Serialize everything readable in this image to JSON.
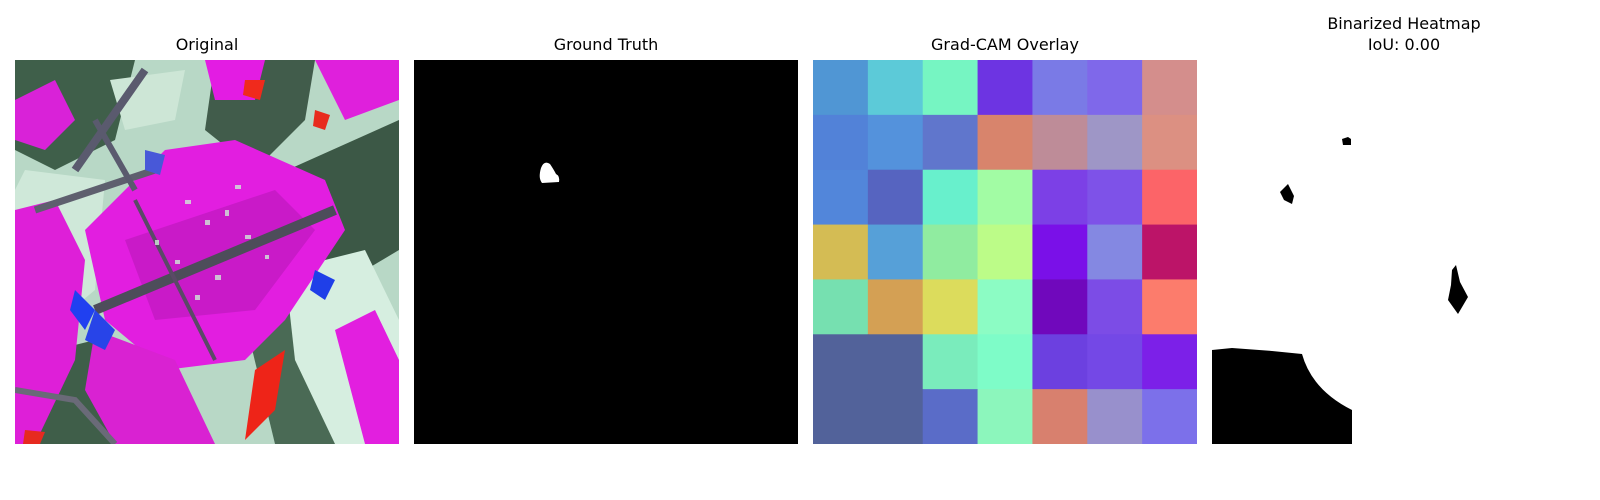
{
  "panels": [
    {
      "id": "original",
      "title": "Original"
    },
    {
      "id": "ground_truth",
      "title": "Ground Truth"
    },
    {
      "id": "gradcam",
      "title": "Grad-CAM Overlay"
    },
    {
      "id": "binarized",
      "title": "Binarized Heatmap",
      "subtitle": "IoU: 0.00"
    }
  ],
  "gradcam_grid": {
    "rows": 7,
    "cols": 7,
    "colors": [
      [
        "#5096d4",
        "#5ccad8",
        "#76f5c2",
        "#6d34e2",
        "#7a7ae6",
        "#7f68ea",
        "#d48e8c"
      ],
      [
        "#5282d8",
        "#5492dc",
        "#6076cc",
        "#d8846c",
        "#be8c98",
        "#9e96c6",
        "#dc9082"
      ],
      [
        "#5286da",
        "#5664c0",
        "#68f0cc",
        "#a2fca4",
        "#7c40e6",
        "#7e52e8",
        "#fc6468"
      ],
      [
        "#d4bc54",
        "#56a0d8",
        "#90eca0",
        "#bcfc88",
        "#7a10e8",
        "#8488e2",
        "#bc1468"
      ],
      [
        "#76e0b0",
        "#d4a054",
        "#dcdc5c",
        "#8cfcc4",
        "#7008bc",
        "#7c4ce6",
        "#fc7c6c"
      ],
      [
        "#52629a",
        "#52629a",
        "#7aecbc",
        "#7efcc8",
        "#6c40e0",
        "#7448e6",
        "#7c20e8"
      ],
      [
        "#52629a",
        "#52629a",
        "#5a6cc8",
        "#8cf6bc",
        "#d8806e",
        "#9890cc",
        "#7c70ea"
      ]
    ]
  }
}
